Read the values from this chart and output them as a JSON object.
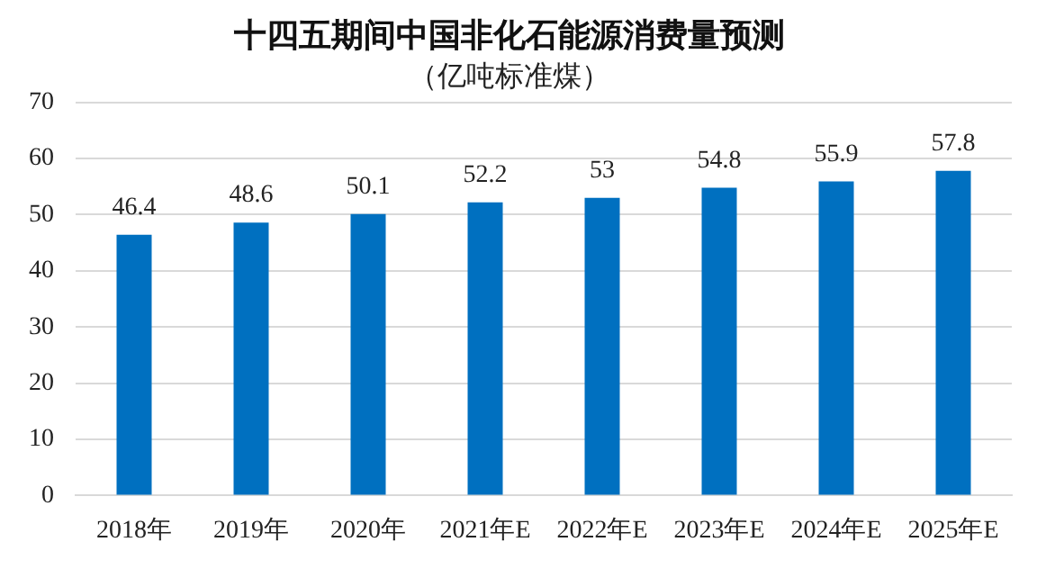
{
  "chart_data": {
    "type": "bar",
    "title": "十四五期间中国非化石能源消费量预测",
    "subtitle": "（亿吨标准煤）",
    "categories": [
      "2018年",
      "2019年",
      "2020年",
      "2021年E",
      "2022年E",
      "2023年E",
      "2024年E",
      "2025年E"
    ],
    "values": [
      46.4,
      48.6,
      50.1,
      52.2,
      53,
      54.8,
      55.9,
      57.8
    ],
    "color": "#0070c0",
    "ylim": [
      0,
      70
    ],
    "yticks": [
      0,
      10,
      20,
      30,
      40,
      50,
      60,
      70
    ],
    "grid": "y",
    "data_labels": true
  }
}
